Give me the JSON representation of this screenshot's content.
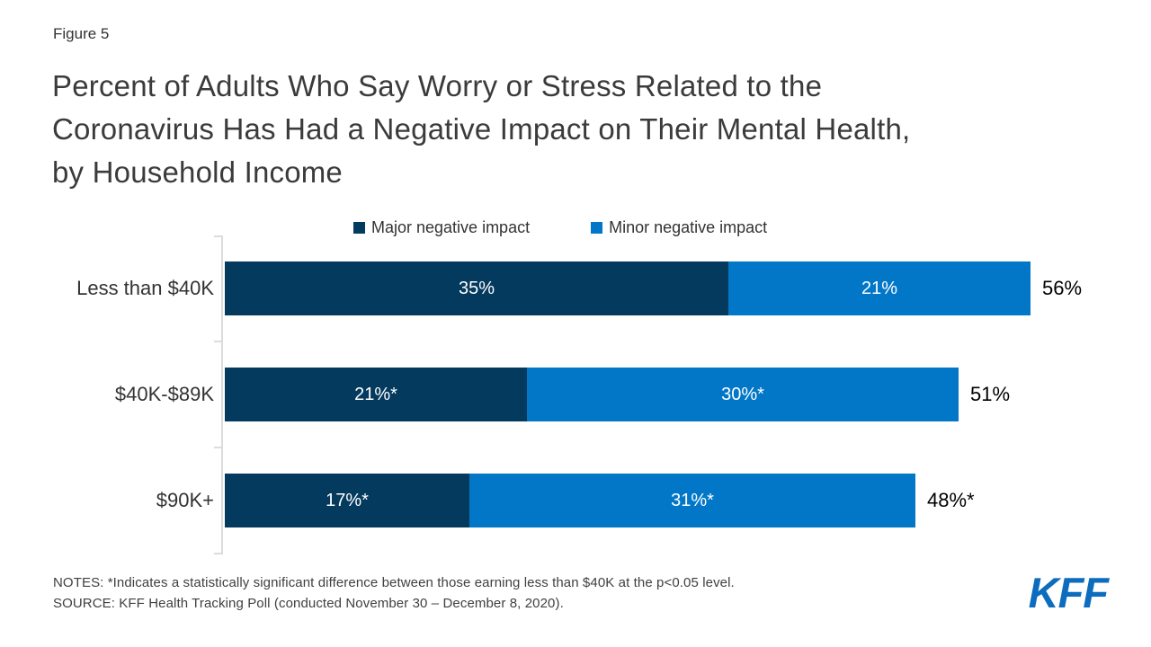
{
  "figure_label": "Figure 5",
  "title": {
    "lines": [
      "Percent of Adults Who Say Worry or Stress Related to the",
      "Coronavirus Has Had a Negative Impact on Their Mental Health,",
      "by Household Income"
    ]
  },
  "chart_data": {
    "type": "bar",
    "orientation": "horizontal",
    "stacked": true,
    "grid": false,
    "legend_position": "top",
    "categories": [
      "Less than $40K",
      "$40K-$89K",
      "$90K+"
    ],
    "series": [
      {
        "name": "Major negative impact",
        "color": "#043a5e",
        "values": [
          35,
          21,
          17
        ],
        "data_labels": [
          "35%",
          "21%*",
          "17%*"
        ]
      },
      {
        "name": "Minor negative impact",
        "color": "#0277c8",
        "values": [
          21,
          30,
          31
        ],
        "data_labels": [
          "21%",
          "30%*",
          "31%*"
        ]
      }
    ],
    "totals": [
      56,
      51,
      48
    ],
    "total_labels": [
      "56%",
      "51%",
      "48%*"
    ],
    "xlim": [
      0,
      60
    ]
  },
  "notes": "NOTES: *Indicates a statistically significant difference between those earning less than $40K at the p<0.05 level.",
  "source": "SOURCE: KFF Health Tracking Poll (conducted November 30 – December 8, 2020).",
  "logo": {
    "text": "KFF",
    "color": "#0c6cbe"
  },
  "colors": {
    "major_segment": "#043a5e",
    "minor_segment": "#0277c8",
    "axis": "#dcdcdc",
    "title_text": "#3b3b3b"
  }
}
